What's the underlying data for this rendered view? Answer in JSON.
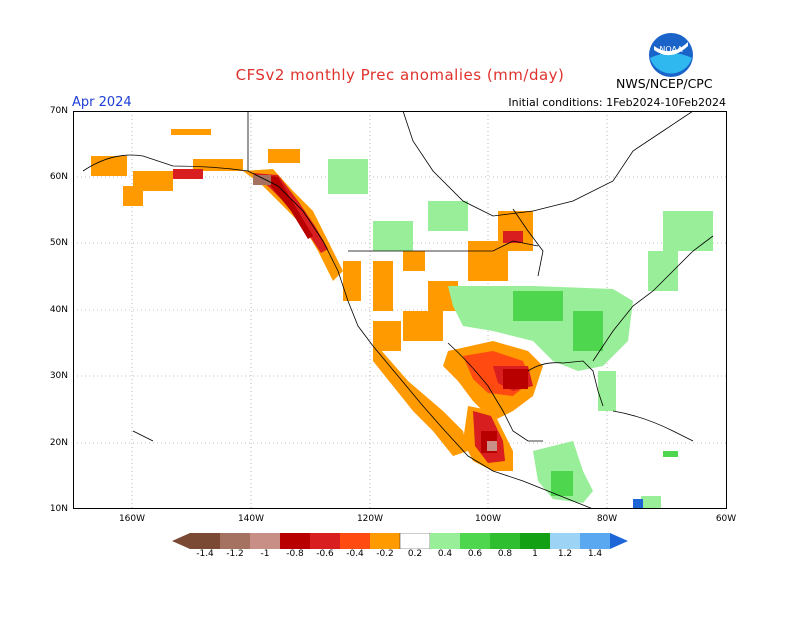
{
  "header": {
    "title": "CFSv2 monthly Prec anomalies (mm/day)",
    "month": "Apr 2024",
    "initial_conditions": "Initial conditions: 1Feb2024-10Feb2024",
    "agency": "NWS/NCEP/CPC",
    "logo_text": "NOAA"
  },
  "map": {
    "lat_labels": [
      "70N",
      "60N",
      "50N",
      "40N",
      "30N",
      "20N",
      "10N"
    ],
    "lon_labels": [
      "160W",
      "140W",
      "120W",
      "100W",
      "80W",
      "60W"
    ]
  },
  "colorbar": {
    "labels": [
      "-1.4",
      "-1.2",
      "-1",
      "-0.8",
      "-0.6",
      "-0.4",
      "-0.2",
      "0.2",
      "0.4",
      "0.6",
      "0.8",
      "1",
      "1.2",
      "1.4"
    ],
    "colors": [
      "#7a4a35",
      "#a57160",
      "#c78f86",
      "#b80000",
      "#d81e1e",
      "#ff4a12",
      "#ff9a00",
      "#ffffff",
      "#99ee99",
      "#4fd64f",
      "#2fbe2f",
      "#14a014",
      "#9dd3f5",
      "#5aa9f0",
      "#1e66d8"
    ]
  }
}
